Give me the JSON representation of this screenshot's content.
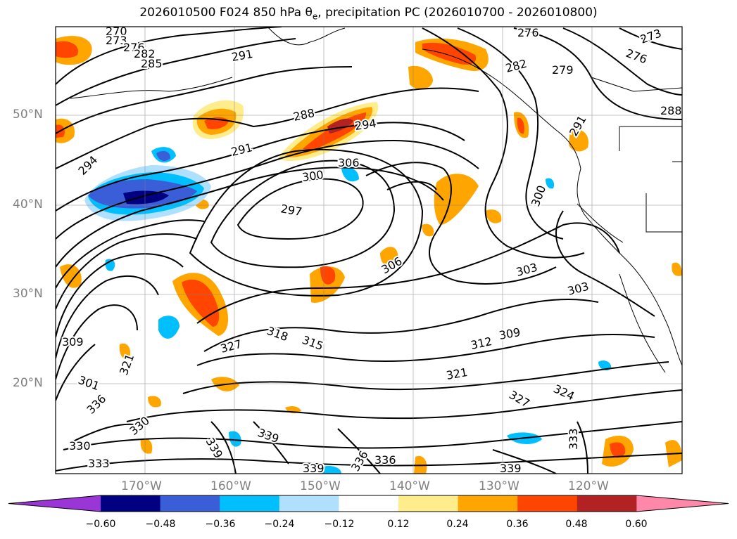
{
  "title": {
    "prefix": "2026010500 F024 850 hPa ",
    "symbol": "θ",
    "symbol_sub": "e",
    "suffix": ", precipitation PC (2026010700 - 2026010800)"
  },
  "axes": {
    "lat_labels": [
      "50°N",
      "40°N",
      "30°N",
      "20°N"
    ],
    "lon_labels": [
      "170°W",
      "160°W",
      "150°W",
      "140°W",
      "130°W",
      "120°W"
    ]
  },
  "contour_labels": [
    "270",
    "273",
    "276",
    "282",
    "285",
    "291",
    "288",
    "294",
    "291",
    "306",
    "300",
    "297",
    "294",
    "276",
    "273",
    "276",
    "282",
    "279",
    "288",
    "291",
    "300",
    "306",
    "303",
    "303",
    "309",
    "312",
    "315",
    "318",
    "327",
    "309",
    "321",
    "330",
    "336",
    "330",
    "333",
    "339",
    "339",
    "339",
    "336",
    "336",
    "321",
    "327",
    "324",
    "333",
    "339",
    "301"
  ],
  "colorbar": {
    "ticks": [
      "−0.60",
      "−0.48",
      "−0.36",
      "−0.24",
      "−0.12",
      "0.12",
      "0.24",
      "0.36",
      "0.48",
      "0.60"
    ],
    "colors": {
      "under": "#9a35d6",
      "bins": [
        "#000080",
        "#3a5ed8",
        "#00bfff",
        "#b0e0ff",
        "#ffffff",
        "#ffec8b",
        "#ffa500",
        "#ff4500",
        "#b22222"
      ],
      "over": "#ff88aa"
    }
  }
}
